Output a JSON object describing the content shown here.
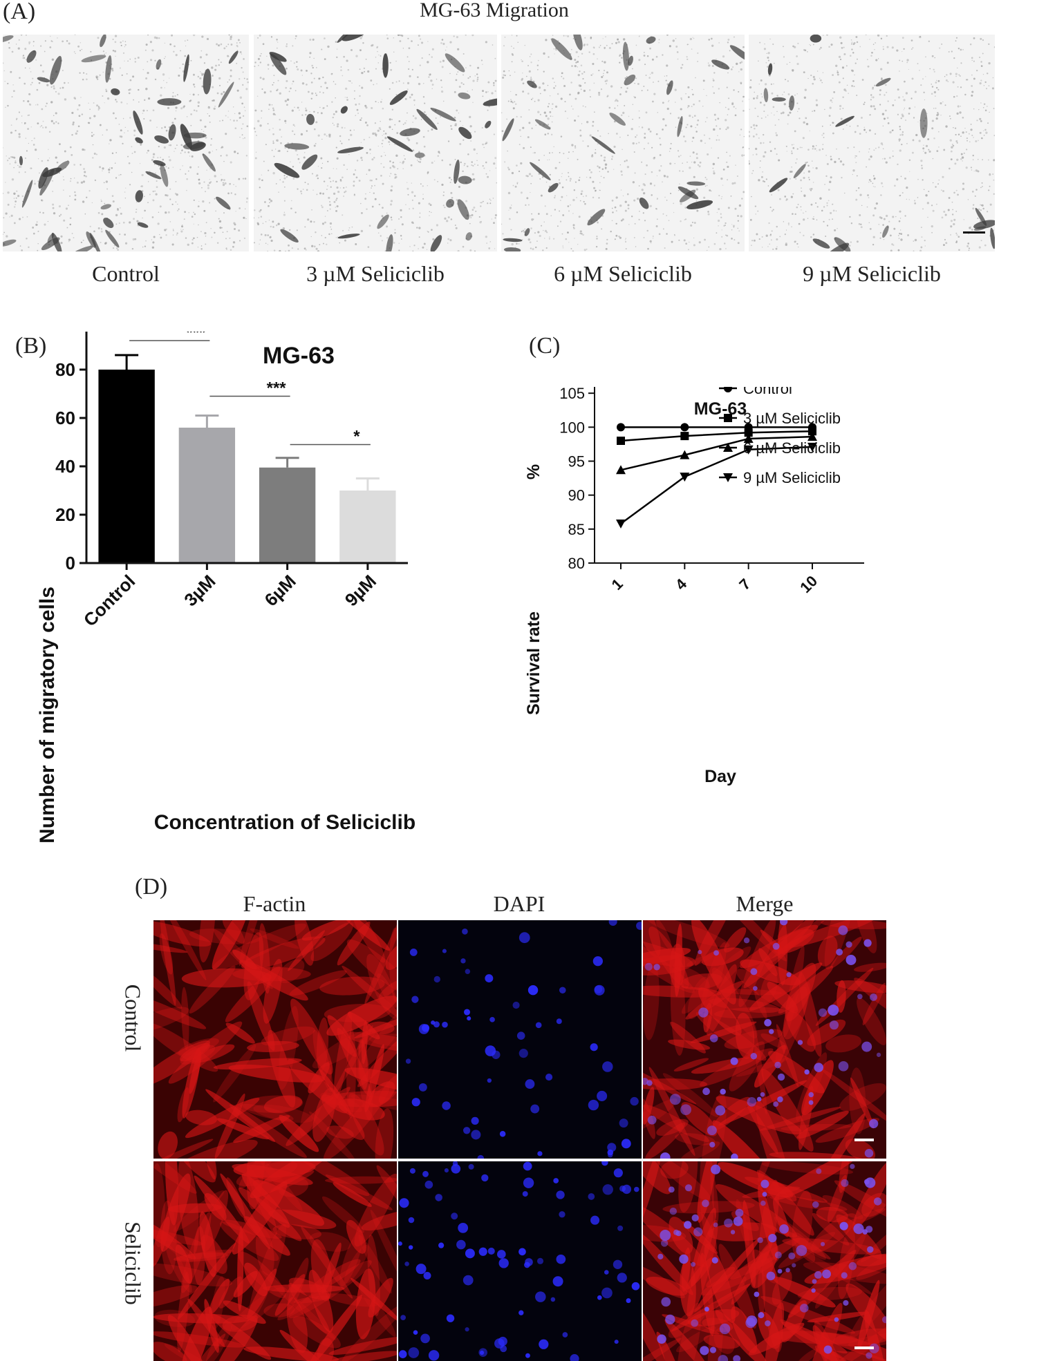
{
  "panel_a": {
    "letter": "(A)",
    "title": "MG-63 Migration",
    "captions": [
      "Control",
      "3 µM Seliciclib",
      "6 µM Seliciclib",
      "9 µM Seliciclib"
    ],
    "cell_density": [
      45,
      32,
      26,
      18
    ]
  },
  "panel_b": {
    "letter": "(B)"
  },
  "panel_c": {
    "letter": "(C)"
  },
  "panel_d": {
    "letter": "(D)",
    "columns": [
      "F-actin",
      "DAPI",
      "Merge"
    ],
    "rows": [
      "Control",
      "Seliciclib"
    ]
  },
  "chart_data": [
    {
      "type": "bar",
      "title": "MG-63",
      "xlabel": "Concentration of Seliciclib",
      "ylabel": "Number of migratory cells",
      "categories": [
        "Control",
        "3µM",
        "6µM",
        "9µM"
      ],
      "values": [
        80,
        56,
        39.5,
        30
      ],
      "errors": [
        6,
        5,
        4,
        5
      ],
      "colors": [
        "#000000",
        "#a7a7ab",
        "#7d7d7d",
        "#dcdcdc"
      ],
      "ylim": [
        0,
        100
      ],
      "yticks": [
        "0",
        "20",
        "40",
        "60",
        "80",
        "100"
      ],
      "significance": [
        {
          "from": 0,
          "to": 1,
          "label": "***",
          "y": 92
        },
        {
          "from": 1,
          "to": 2,
          "label": "***",
          "y": 69
        },
        {
          "from": 2,
          "to": 3,
          "label": "*",
          "y": 49
        }
      ]
    },
    {
      "type": "line",
      "title": "MG-63",
      "xlabel": "Day",
      "ylabel": "Survival rate",
      "yunit": "%",
      "x": [
        "1",
        "4",
        "7",
        "10"
      ],
      "ylim": [
        80,
        110
      ],
      "yticks": [
        "80",
        "85",
        "90",
        "95",
        "100",
        "105",
        "110"
      ],
      "legend_position": "right",
      "series": [
        {
          "name": "Control",
          "marker": "circle",
          "values": [
            100,
            100,
            100,
            100
          ]
        },
        {
          "name": "3 µM Seliciclib",
          "marker": "square",
          "values": [
            98,
            98.7,
            99.2,
            99.4
          ]
        },
        {
          "name": "6 µM Seliciclib",
          "marker": "triangle-up",
          "values": [
            93.7,
            95.9,
            98.3,
            98.6
          ]
        },
        {
          "name": "9 µM Seliciclib",
          "marker": "triangle-down",
          "values": [
            85.8,
            92.7,
            96.7,
            97.1
          ]
        }
      ]
    }
  ]
}
